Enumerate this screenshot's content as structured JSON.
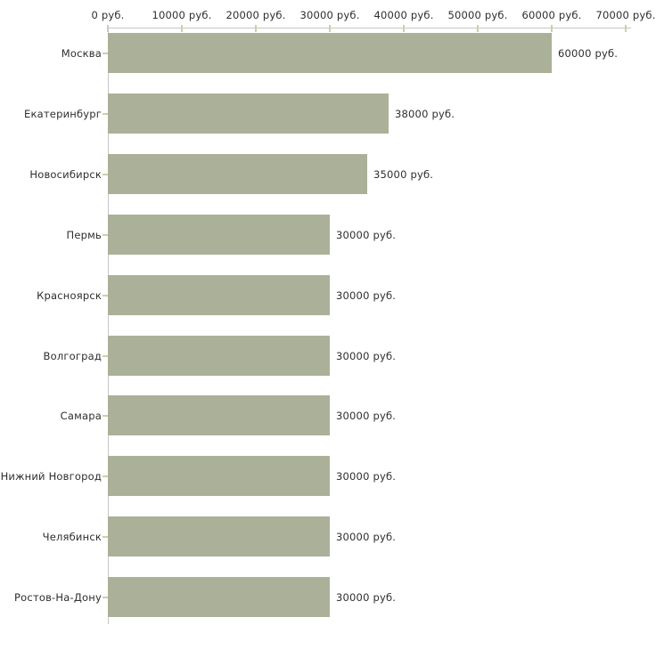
{
  "chart_data": {
    "type": "bar",
    "orientation": "horizontal",
    "title": "",
    "xlabel": "",
    "ylabel": "",
    "unit": "руб.",
    "categories": [
      "Москва",
      "Екатеринбург",
      "Новосибирск",
      "Пермь",
      "Красноярск",
      "Волгоград",
      "Самара",
      "Нижний Новгород",
      "Челябинск",
      "Ростов-На-Дону"
    ],
    "values": [
      60000,
      38000,
      35000,
      30000,
      30000,
      30000,
      30000,
      30000,
      30000,
      30000
    ],
    "value_labels": [
      "60000 руб.",
      "38000 руб.",
      "35000 руб.",
      "30000 руб.",
      "30000 руб.",
      "30000 руб.",
      "30000 руб.",
      "30000 руб.",
      "30000 руб.",
      "30000 руб."
    ],
    "xlim": [
      0,
      70000
    ],
    "x_ticks": [
      0,
      10000,
      20000,
      30000,
      40000,
      50000,
      60000,
      70000
    ],
    "x_tick_labels": [
      "0 руб.",
      "10000 руб.",
      "20000 руб.",
      "30000 руб.",
      "40000 руб.",
      "50000 руб.",
      "60000 руб.",
      "70000 руб."
    ],
    "grid": false,
    "legend": false,
    "axis_position": "top"
  },
  "colors": {
    "bar_fill": "#abb198",
    "axis_line": "#c6c6c6",
    "tick_mark": "#cdd0a3",
    "text": "#2e2e2e",
    "background": "#ffffff"
  }
}
